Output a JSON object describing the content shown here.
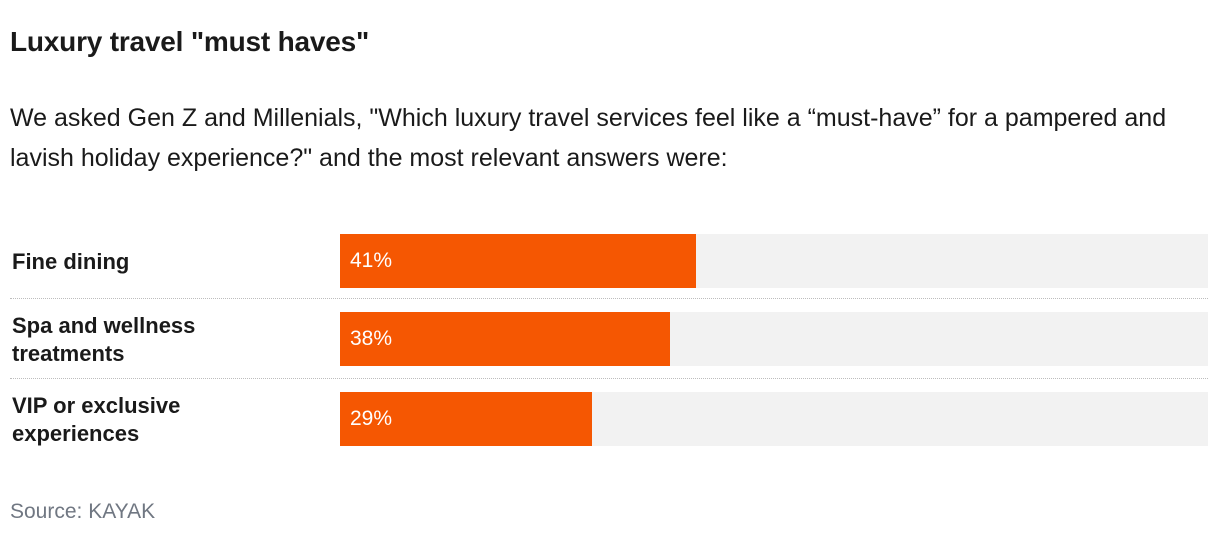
{
  "title": "Luxury travel \"must haves\"",
  "subtitle": "We asked Gen Z and Millenials, \"Which luxury travel services feel like a “must-have” for a pampered and lavish holiday experience?\" and the most relevant answers were:",
  "source": "Source: KAYAK",
  "colors": {
    "bar": "#f55702",
    "track": "#f2f2f2",
    "text": "#1a1a1a",
    "source": "#707782"
  },
  "chart_data": {
    "type": "bar",
    "orientation": "horizontal",
    "title": "Luxury travel \"must haves\"",
    "categories": [
      "Fine dining",
      "Spa and wellness treatments",
      "VIP or exclusive experiences"
    ],
    "values": [
      41,
      38,
      29
    ],
    "value_labels": [
      "41%",
      "38%",
      "29%"
    ],
    "unit": "%",
    "xlim": [
      0,
      100
    ],
    "grid": false,
    "legend": "none"
  },
  "rows": [
    {
      "label_line1": "Fine dining",
      "label_line2": "",
      "value": 41,
      "value_label": "41%"
    },
    {
      "label_line1": "Spa and wellness",
      "label_line2": "treatments",
      "value": 38,
      "value_label": "38%"
    },
    {
      "label_line1": "VIP or exclusive",
      "label_line2": "experiences",
      "value": 29,
      "value_label": "29%"
    }
  ]
}
